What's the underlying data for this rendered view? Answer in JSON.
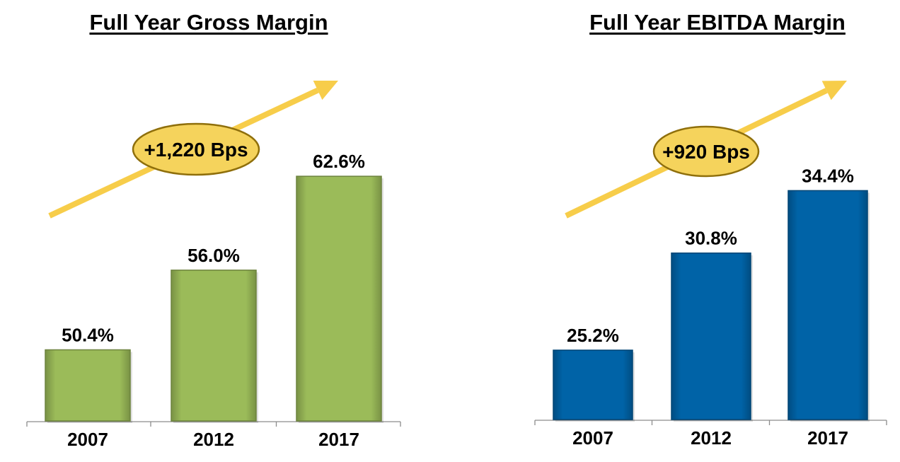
{
  "chart_data": [
    {
      "type": "bar",
      "title": "Full Year Gross Margin",
      "categories": [
        "2007",
        "2012",
        "2017"
      ],
      "values": [
        50.4,
        56.0,
        62.6
      ],
      "value_labels": [
        "50.4%",
        "56.0%",
        "62.6%"
      ],
      "annotation": "+1,220 Bps",
      "ylim": [
        45.4,
        63.8
      ],
      "color": "#9BBB59",
      "grid": false
    },
    {
      "type": "bar",
      "title": "Full Year EBITDA Margin",
      "categories": [
        "2007",
        "2012",
        "2017"
      ],
      "values": [
        25.2,
        30.8,
        34.4
      ],
      "value_labels": [
        "25.2%",
        "30.8%",
        "34.4%"
      ],
      "annotation": "+920 Bps",
      "ylim": [
        21.2,
        35.6
      ],
      "color": "#0063A7",
      "grid": false
    }
  ],
  "colors": {
    "arrow": "#F7CD4A",
    "badge_fill": "#F5D35C",
    "badge_stroke": "#8F6F0B"
  }
}
